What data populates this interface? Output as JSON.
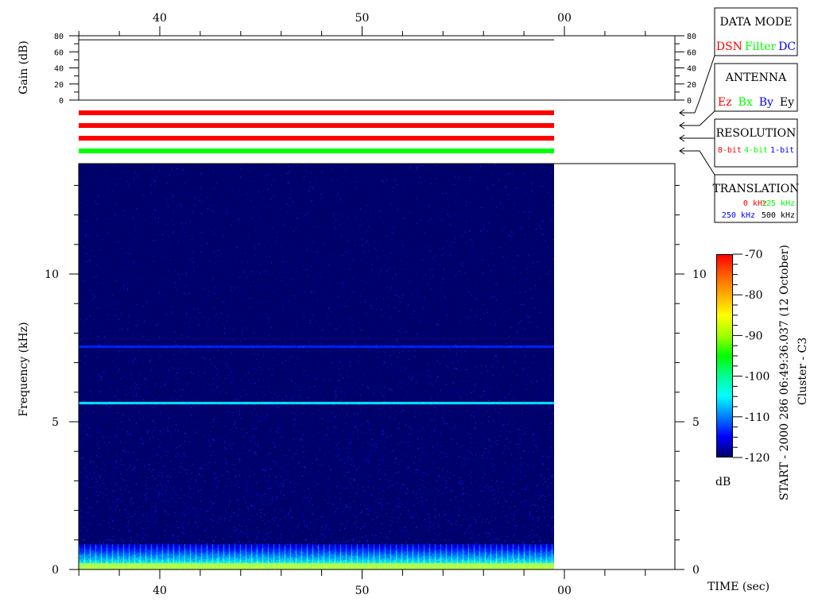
{
  "chart_data": {
    "type": "heatmap",
    "xlabel": "TIME (sec)",
    "ylabel": "Frequency (kHz)",
    "x_ticks": [
      "40",
      "50",
      "00"
    ],
    "y_ticks": [
      "0",
      "5",
      "10"
    ],
    "ylim_khz": [
      0,
      13.7
    ],
    "gain_panel": {
      "ylabel": "Gain (dB)",
      "y_ticks": [
        "0",
        "20",
        "40",
        "60",
        "80"
      ],
      "ylim": [
        0,
        80
      ],
      "gain_value_db": 75
    },
    "colorbar": {
      "label": "dB",
      "ticks": [
        "-70",
        "-80",
        "-90",
        "-100",
        "-110",
        "-120"
      ],
      "range": [
        -120,
        -70
      ],
      "colormap": "jet"
    },
    "features": [
      {
        "type": "line",
        "frequency_khz": 5.6,
        "level_db": -103
      },
      {
        "type": "line",
        "frequency_khz": 7.5,
        "level_db": -113
      },
      {
        "type": "band",
        "frequency_khz": [
          0,
          0.85
        ],
        "level_db": -95
      }
    ],
    "side_title": "START - 2000 286 06:49:36.037 (12 October)",
    "side_subtitle": "Cluster - C3"
  },
  "mode_bars": [
    "#ff0000",
    "#ff0000",
    "#ff0000",
    "#00ff00"
  ],
  "legend": {
    "data_mode": {
      "title": "DATA MODE",
      "items": [
        {
          "text": "DSN",
          "color": "#ff0000"
        },
        {
          "text": "Filter",
          "color": "#00ff00"
        },
        {
          "text": "DC",
          "color": "#0000ff"
        }
      ]
    },
    "antenna": {
      "title": "ANTENNA",
      "items": [
        {
          "text": "Ez",
          "color": "#ff0000"
        },
        {
          "text": "Bx",
          "color": "#00ff00"
        },
        {
          "text": "By",
          "color": "#0000ff"
        },
        {
          "text": "Ey",
          "color": "#000000"
        }
      ]
    },
    "resolution": {
      "title": "RESOLUTION",
      "items": [
        {
          "text": "8-bit",
          "color": "#ff0000"
        },
        {
          "text": "4-bit",
          "color": "#00ff00"
        },
        {
          "text": "1-bit",
          "color": "#0000ff"
        }
      ]
    },
    "translation": {
      "title": "TRANSLATION",
      "items": [
        {
          "text": "0 kHz",
          "color": "#ff0000"
        },
        {
          "text": "125 kHz",
          "color": "#00ff00"
        },
        {
          "text": "250 kHz",
          "color": "#0000ff"
        },
        {
          "text": "500 kHz",
          "color": "#000000"
        }
      ]
    }
  }
}
